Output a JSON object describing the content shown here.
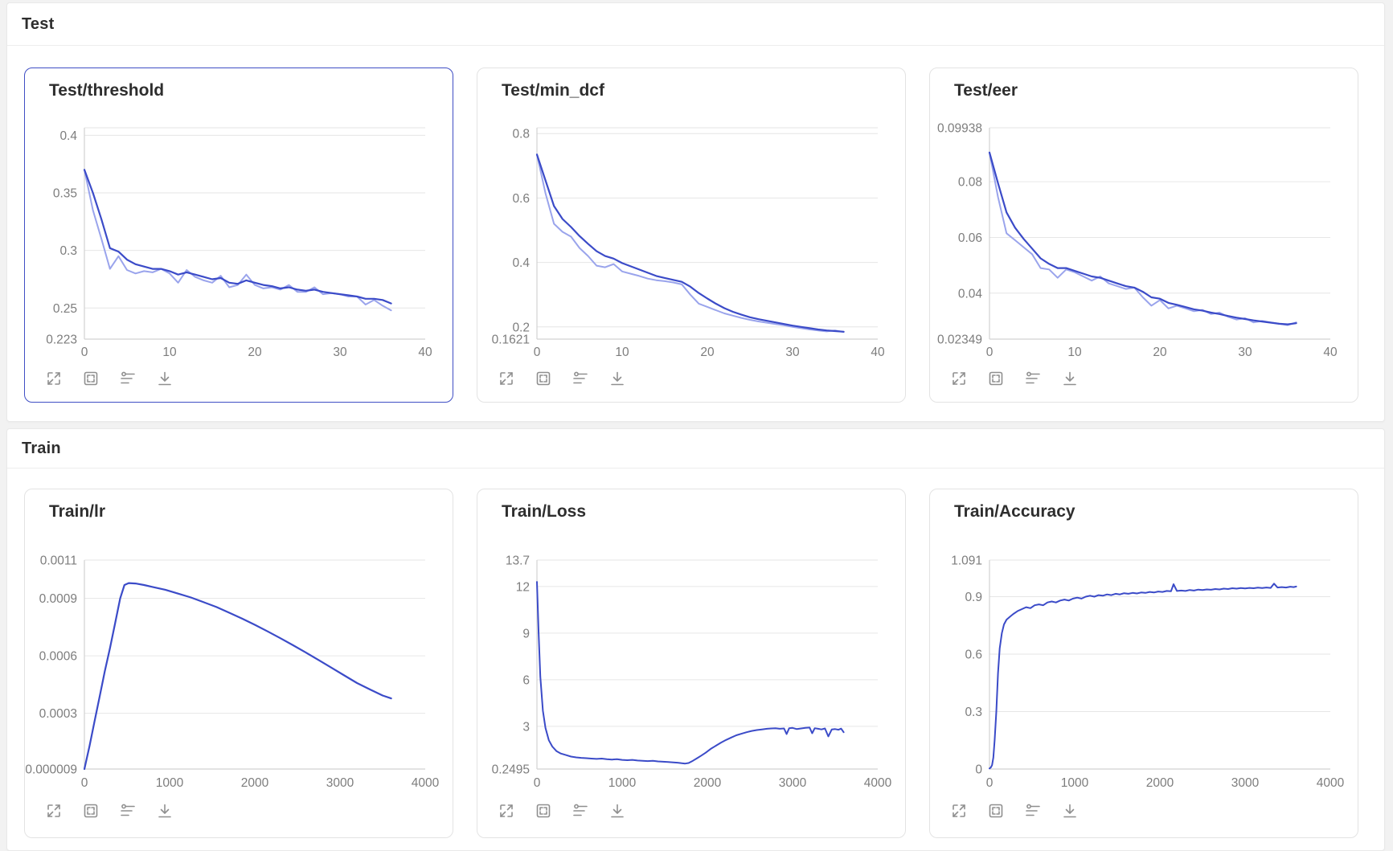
{
  "colors": {
    "dark": "#3b4bc8",
    "light": "#9aa4ec",
    "selected_border": "#3f4ec4",
    "grid": "#e6e6e6",
    "axis": "#d2d2d2",
    "tick_text": "#7d7d7d"
  },
  "toolbar": {
    "icons": [
      "expand-icon",
      "select-all-icon",
      "smoothing-icon",
      "download-icon"
    ]
  },
  "sections": [
    {
      "title": "Test",
      "cards": [
        {
          "title": "Test/threshold",
          "selected": true,
          "chart_index": 0
        },
        {
          "title": "Test/min_dcf",
          "selected": false,
          "chart_index": 1
        },
        {
          "title": "Test/eer",
          "selected": false,
          "chart_index": 2
        }
      ]
    },
    {
      "title": "Train",
      "cards": [
        {
          "title": "Train/lr",
          "selected": false,
          "chart_index": 3
        },
        {
          "title": "Train/Loss",
          "selected": false,
          "chart_index": 4
        },
        {
          "title": "Train/Accuracy",
          "selected": false,
          "chart_index": 5
        }
      ]
    }
  ],
  "chart_data": [
    {
      "type": "line",
      "title": "Test/threshold",
      "grid": true,
      "legend": "none",
      "xlim": [
        0,
        40
      ],
      "x_ticks": [
        "0",
        "10",
        "20",
        "30",
        "40"
      ],
      "ylim": [
        0.223,
        0.4065
      ],
      "y_ticks": [
        {
          "v": 0.4,
          "label": "0.4"
        },
        {
          "v": 0.35,
          "label": "0.35"
        },
        {
          "v": 0.3,
          "label": "0.3"
        },
        {
          "v": 0.25,
          "label": "0.25"
        },
        {
          "v": 0.223,
          "label": "0.223"
        }
      ],
      "series": [
        {
          "name": "raw",
          "color": "light",
          "width": 2,
          "y": [
            0.37,
            0.335,
            0.31,
            0.284,
            0.295,
            0.283,
            0.28,
            0.282,
            0.281,
            0.284,
            0.28,
            0.272,
            0.283,
            0.277,
            0.274,
            0.272,
            0.278,
            0.268,
            0.27,
            0.279,
            0.27,
            0.267,
            0.268,
            0.266,
            0.27,
            0.264,
            0.264,
            0.268,
            0.262,
            0.263,
            0.262,
            0.26,
            0.26,
            0.253,
            0.257,
            0.252,
            0.248
          ]
        },
        {
          "name": "smoothed",
          "color": "dark",
          "width": 2.2,
          "y": [
            0.37,
            0.35,
            0.327,
            0.302,
            0.299,
            0.292,
            0.288,
            0.286,
            0.284,
            0.284,
            0.282,
            0.279,
            0.281,
            0.279,
            0.277,
            0.275,
            0.276,
            0.272,
            0.271,
            0.274,
            0.272,
            0.27,
            0.269,
            0.267,
            0.268,
            0.266,
            0.265,
            0.266,
            0.264,
            0.263,
            0.262,
            0.261,
            0.26,
            0.258,
            0.258,
            0.257,
            0.254
          ]
        }
      ]
    },
    {
      "type": "line",
      "title": "Test/min_dcf",
      "grid": true,
      "legend": "none",
      "xlim": [
        0,
        40
      ],
      "x_ticks": [
        "0",
        "10",
        "20",
        "30",
        "40"
      ],
      "ylim": [
        0.1621,
        0.818
      ],
      "y_ticks": [
        {
          "v": 0.8,
          "label": "0.8"
        },
        {
          "v": 0.6,
          "label": "0.6"
        },
        {
          "v": 0.4,
          "label": "0.4"
        },
        {
          "v": 0.2,
          "label": "0.2"
        },
        {
          "v": 0.1621,
          "label": "0.1621"
        }
      ],
      "series": [
        {
          "name": "raw",
          "color": "light",
          "width": 2,
          "y": [
            0.735,
            0.615,
            0.52,
            0.495,
            0.48,
            0.445,
            0.42,
            0.39,
            0.385,
            0.395,
            0.372,
            0.365,
            0.358,
            0.35,
            0.345,
            0.342,
            0.338,
            0.332,
            0.3,
            0.272,
            0.262,
            0.252,
            0.242,
            0.235,
            0.228,
            0.222,
            0.217,
            0.213,
            0.209,
            0.205,
            0.2,
            0.196,
            0.192,
            0.189,
            0.186,
            0.189,
            0.184
          ]
        },
        {
          "name": "smoothed",
          "color": "dark",
          "width": 2.2,
          "y": [
            0.735,
            0.655,
            0.575,
            0.535,
            0.51,
            0.482,
            0.458,
            0.435,
            0.42,
            0.412,
            0.398,
            0.388,
            0.378,
            0.368,
            0.358,
            0.352,
            0.346,
            0.34,
            0.325,
            0.305,
            0.288,
            0.272,
            0.258,
            0.247,
            0.238,
            0.23,
            0.224,
            0.219,
            0.214,
            0.209,
            0.204,
            0.2,
            0.196,
            0.192,
            0.189,
            0.187,
            0.185
          ]
        }
      ]
    },
    {
      "type": "line",
      "title": "Test/eer",
      "grid": true,
      "legend": "none",
      "xlim": [
        0,
        40
      ],
      "x_ticks": [
        "0",
        "10",
        "20",
        "30",
        "40"
      ],
      "ylim": [
        0.02349,
        0.09938
      ],
      "y_ticks": [
        {
          "v": 0.09938,
          "label": "0.09938"
        },
        {
          "v": 0.08,
          "label": "0.08"
        },
        {
          "v": 0.06,
          "label": "0.06"
        },
        {
          "v": 0.04,
          "label": "0.04"
        },
        {
          "v": 0.02349,
          "label": "0.02349"
        }
      ],
      "series": [
        {
          "name": "raw",
          "color": "light",
          "width": 2,
          "y": [
            0.0905,
            0.0745,
            0.0615,
            0.059,
            0.0565,
            0.054,
            0.049,
            0.0485,
            0.0455,
            0.0485,
            0.0475,
            0.046,
            0.0445,
            0.046,
            0.0435,
            0.0425,
            0.0415,
            0.042,
            0.0385,
            0.0355,
            0.0375,
            0.0345,
            0.0355,
            0.0345,
            0.0335,
            0.034,
            0.0325,
            0.033,
            0.0315,
            0.0305,
            0.031,
            0.0295,
            0.03,
            0.0295,
            0.029,
            0.0285,
            0.0295
          ]
        },
        {
          "name": "smoothed",
          "color": "dark",
          "width": 2.2,
          "y": [
            0.0905,
            0.0795,
            0.069,
            0.0635,
            0.0595,
            0.056,
            0.0525,
            0.0505,
            0.049,
            0.049,
            0.048,
            0.047,
            0.046,
            0.0455,
            0.0445,
            0.0435,
            0.0425,
            0.042,
            0.0405,
            0.0385,
            0.038,
            0.0365,
            0.0358,
            0.035,
            0.0342,
            0.0337,
            0.033,
            0.0325,
            0.0318,
            0.0312,
            0.0307,
            0.0302,
            0.0298,
            0.0294,
            0.029,
            0.0288,
            0.0292
          ]
        }
      ]
    },
    {
      "type": "line",
      "title": "Train/lr",
      "grid": true,
      "legend": "none",
      "xlim": [
        0,
        4000
      ],
      "x_ticks": [
        "0",
        "1000",
        "2000",
        "3000",
        "4000"
      ],
      "ylim": [
        9e-06,
        0.0011
      ],
      "y_ticks": [
        {
          "v": 0.0011,
          "label": "0.0011"
        },
        {
          "v": 0.0009,
          "label": "0.0009"
        },
        {
          "v": 0.0006,
          "label": "0.0006"
        },
        {
          "v": 0.0003,
          "label": "0.0003"
        },
        {
          "v": 9e-06,
          "label": "0.000009"
        }
      ],
      "series": [
        {
          "name": "value",
          "color": "dark",
          "width": 2.2,
          "x": [
            0,
            60,
            120,
            180,
            240,
            300,
            360,
            420,
            470,
            520,
            600,
            700,
            800,
            950,
            1100,
            1250,
            1400,
            1550,
            1700,
            1850,
            2000,
            2150,
            2300,
            2450,
            2600,
            2750,
            2900,
            3050,
            3200,
            3350,
            3500,
            3600
          ],
          "y": [
            9e-06,
            0.00013,
            0.00026,
            0.00039,
            0.00052,
            0.00064,
            0.00077,
            0.0009,
            0.00097,
            0.00098,
            0.000978,
            0.00097,
            0.00096,
            0.000945,
            0.000925,
            0.000905,
            0.00088,
            0.000855,
            0.000825,
            0.000795,
            0.000762,
            0.000728,
            0.000692,
            0.000655,
            0.000617,
            0.000578,
            0.000538,
            0.000498,
            0.000458,
            0.000425,
            0.000393,
            0.000378
          ]
        }
      ]
    },
    {
      "type": "line",
      "title": "Train/Loss",
      "grid": true,
      "legend": "none",
      "xlim": [
        0,
        4000
      ],
      "x_ticks": [
        "0",
        "1000",
        "2000",
        "3000",
        "4000"
      ],
      "ylim": [
        0.2495,
        13.7
      ],
      "y_ticks": [
        {
          "v": 13.7,
          "label": "13.7"
        },
        {
          "v": 12,
          "label": "12"
        },
        {
          "v": 9,
          "label": "9"
        },
        {
          "v": 6,
          "label": "6"
        },
        {
          "v": 3,
          "label": "3"
        },
        {
          "v": 0.2495,
          "label": "0.2495"
        }
      ],
      "series": [
        {
          "name": "value",
          "color": "dark",
          "width": 2,
          "x": [
            0,
            20,
            40,
            70,
            100,
            140,
            180,
            230,
            280,
            340,
            400,
            460,
            520,
            580,
            640,
            700,
            760,
            820,
            880,
            940,
            1000,
            1060,
            1120,
            1180,
            1240,
            1300,
            1360,
            1420,
            1480,
            1540,
            1600,
            1650,
            1700,
            1740,
            1780,
            1830,
            1880,
            1930,
            1980,
            2040,
            2100,
            2160,
            2220,
            2280,
            2340,
            2400,
            2460,
            2520,
            2580,
            2640,
            2700,
            2750,
            2800,
            2850,
            2900,
            2930,
            2960,
            3000,
            3050,
            3100,
            3150,
            3200,
            3230,
            3260,
            3300,
            3340,
            3380,
            3420,
            3460,
            3500,
            3540,
            3570,
            3600
          ],
          "y": [
            12.3,
            9.0,
            6.2,
            4.0,
            2.9,
            2.1,
            1.7,
            1.4,
            1.25,
            1.15,
            1.05,
            1.0,
            0.97,
            0.95,
            0.92,
            0.9,
            0.92,
            0.88,
            0.86,
            0.88,
            0.84,
            0.82,
            0.84,
            0.8,
            0.78,
            0.76,
            0.78,
            0.74,
            0.72,
            0.7,
            0.68,
            0.66,
            0.62,
            0.6,
            0.64,
            0.78,
            0.95,
            1.12,
            1.3,
            1.55,
            1.75,
            1.95,
            2.12,
            2.28,
            2.42,
            2.52,
            2.62,
            2.7,
            2.76,
            2.8,
            2.84,
            2.86,
            2.88,
            2.84,
            2.86,
            2.5,
            2.88,
            2.9,
            2.82,
            2.86,
            2.9,
            2.92,
            2.55,
            2.88,
            2.84,
            2.8,
            2.86,
            2.35,
            2.8,
            2.82,
            2.78,
            2.85,
            2.62
          ]
        }
      ]
    },
    {
      "type": "line",
      "title": "Train/Accuracy",
      "grid": true,
      "legend": "none",
      "xlim": [
        0,
        4000
      ],
      "x_ticks": [
        "0",
        "1000",
        "2000",
        "3000",
        "4000"
      ],
      "ylim": [
        0,
        1.091
      ],
      "y_ticks": [
        {
          "v": 1.091,
          "label": "1.091"
        },
        {
          "v": 0.9,
          "label": "0.9"
        },
        {
          "v": 0.6,
          "label": "0.6"
        },
        {
          "v": 0.3,
          "label": "0.3"
        },
        {
          "v": 0,
          "label": "0"
        }
      ],
      "series": [
        {
          "name": "value",
          "color": "dark",
          "width": 2,
          "x": [
            0,
            15,
            30,
            45,
            60,
            80,
            100,
            120,
            145,
            170,
            200,
            240,
            280,
            330,
            380,
            430,
            480,
            530,
            580,
            630,
            680,
            730,
            780,
            830,
            880,
            930,
            980,
            1030,
            1080,
            1130,
            1180,
            1230,
            1280,
            1330,
            1380,
            1430,
            1480,
            1530,
            1580,
            1630,
            1680,
            1730,
            1780,
            1830,
            1880,
            1930,
            1980,
            2030,
            2080,
            2130,
            2160,
            2200,
            2250,
            2300,
            2350,
            2400,
            2450,
            2500,
            2550,
            2600,
            2650,
            2700,
            2750,
            2800,
            2850,
            2900,
            2950,
            3000,
            3050,
            3100,
            3150,
            3200,
            3250,
            3300,
            3340,
            3380,
            3430,
            3480,
            3530,
            3570,
            3600
          ],
          "y": [
            0.003,
            0.008,
            0.02,
            0.06,
            0.15,
            0.3,
            0.5,
            0.63,
            0.71,
            0.755,
            0.78,
            0.795,
            0.81,
            0.825,
            0.835,
            0.845,
            0.84,
            0.855,
            0.86,
            0.855,
            0.87,
            0.875,
            0.87,
            0.88,
            0.885,
            0.88,
            0.89,
            0.895,
            0.89,
            0.9,
            0.905,
            0.9,
            0.908,
            0.905,
            0.912,
            0.908,
            0.915,
            0.912,
            0.918,
            0.915,
            0.92,
            0.917,
            0.922,
            0.92,
            0.925,
            0.922,
            0.927,
            0.925,
            0.93,
            0.928,
            0.965,
            0.93,
            0.932,
            0.93,
            0.935,
            0.932,
            0.937,
            0.935,
            0.938,
            0.936,
            0.94,
            0.938,
            0.942,
            0.94,
            0.944,
            0.942,
            0.945,
            0.943,
            0.946,
            0.944,
            0.947,
            0.945,
            0.948,
            0.946,
            0.968,
            0.948,
            0.95,
            0.948,
            0.952,
            0.95,
            0.953
          ]
        }
      ]
    }
  ]
}
